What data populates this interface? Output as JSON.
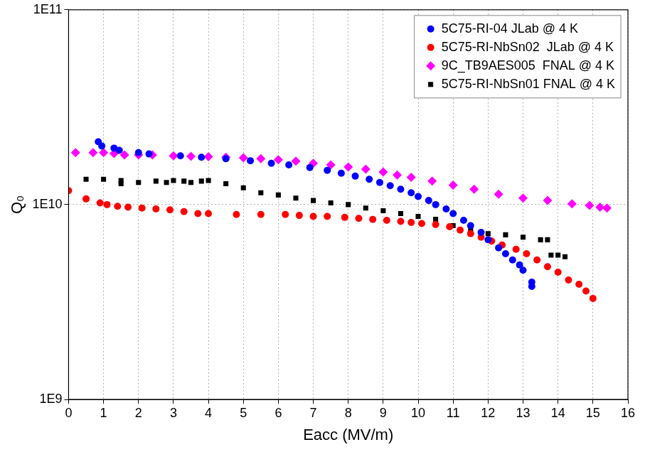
{
  "chart_data": {
    "type": "scatter",
    "x_label": "Eacc (MV/m)",
    "y_label": "Q₀",
    "log": "y",
    "grid": true,
    "legend": "upper right",
    "xlim": [
      0,
      16
    ],
    "xticks": [
      0,
      1,
      2,
      3,
      4,
      5,
      6,
      7,
      8,
      9,
      10,
      11,
      12,
      13,
      14,
      15,
      16
    ],
    "ylim": [
      1000000000,
      100000000000
    ],
    "yticks": [
      {
        "value": 1000000000,
        "label": "1E9"
      },
      {
        "value": 10000000000,
        "label": "1E10"
      },
      {
        "value": 100000000000,
        "label": "1E11"
      }
    ],
    "series": [
      {
        "name": "5C75-RI-04 JLab @ 4 K",
        "color": "#0000ff",
        "marker": "circle",
        "x": [
          0.85,
          0.95,
          1.3,
          1.45,
          2.0,
          2.3,
          3.2,
          3.8,
          4.5,
          5.2,
          5.8,
          6.3,
          6.9,
          7.4,
          7.8,
          8.2,
          8.6,
          8.9,
          9.2,
          9.5,
          9.8,
          10.0,
          10.3,
          10.5,
          10.8,
          11.0,
          11.3,
          11.5,
          11.8,
          12.0,
          12.3,
          12.5,
          12.7,
          12.9,
          13.0,
          13.25,
          13.25
        ],
        "values": [
          21000000000,
          20000000000,
          19500000000,
          19000000000,
          18500000000,
          18200000000,
          17800000000,
          17500000000,
          17200000000,
          16800000000,
          16300000000,
          16000000000,
          15500000000,
          15000000000,
          14500000000,
          14000000000,
          13500000000,
          13000000000,
          12500000000,
          12000000000,
          11500000000,
          11000000000,
          10500000000,
          10000000000,
          9500000000,
          9000000000,
          8300000000,
          7800000000,
          7200000000,
          6600000000,
          6000000000,
          5600000000,
          5200000000,
          4900000000,
          4600000000,
          4000000000,
          3800000000
        ]
      },
      {
        "name": "5C75-RI-NbSn02  JLab @ 4 K",
        "color": "#ff0000",
        "marker": "circle",
        "x": [
          0.0,
          0.5,
          0.9,
          1.1,
          1.4,
          1.7,
          2.1,
          2.5,
          2.9,
          3.3,
          3.7,
          4.0,
          4.8,
          5.5,
          6.2,
          6.6,
          7.0,
          7.4,
          7.9,
          8.3,
          8.7,
          9.1,
          9.5,
          9.8,
          10.1,
          10.5,
          10.9,
          11.2,
          11.5,
          11.8,
          12.1,
          12.4,
          12.8,
          13.1,
          13.4,
          13.7,
          14.0,
          14.3,
          14.6,
          14.8,
          15.0
        ],
        "values": [
          11800000000,
          10700000000,
          10200000000,
          10000000000,
          9800000000,
          9700000000,
          9600000000,
          9500000000,
          9400000000,
          9200000000,
          9000000000,
          9000000000,
          8900000000,
          8900000000,
          8900000000,
          8800000000,
          8700000000,
          8700000000,
          8600000000,
          8500000000,
          8400000000,
          8300000000,
          8200000000,
          8100000000,
          8000000000,
          7900000000,
          7700000000,
          7400000000,
          7100000000,
          6800000000,
          6500000000,
          6200000000,
          5900000000,
          5600000000,
          5200000000,
          4800000000,
          4500000000,
          4100000000,
          3900000000,
          3600000000,
          3300000000
        ]
      },
      {
        "name": "9C_TB9AES005  FNAL @ 4 K",
        "color": "#ff00ff",
        "marker": "diamond",
        "x": [
          0.2,
          0.7,
          1.0,
          1.3,
          1.6,
          2.0,
          2.4,
          3.0,
          3.5,
          4.0,
          4.5,
          5.0,
          5.5,
          6.0,
          6.5,
          7.0,
          7.5,
          8.0,
          8.5,
          9.0,
          9.4,
          9.8,
          10.4,
          11.0,
          11.6,
          12.3,
          13.0,
          13.7,
          14.4,
          14.9,
          15.2,
          15.4
        ],
        "values": [
          18500000000,
          18500000000,
          18500000000,
          18300000000,
          18000000000,
          18000000000,
          18000000000,
          17800000000,
          17700000000,
          17600000000,
          17500000000,
          17400000000,
          17200000000,
          17000000000,
          16700000000,
          16300000000,
          16000000000,
          15600000000,
          15200000000,
          14700000000,
          14200000000,
          13800000000,
          13200000000,
          12600000000,
          12000000000,
          11300000000,
          10800000000,
          10500000000,
          10100000000,
          9900000000,
          9700000000,
          9600000000
        ]
      },
      {
        "name": "5C75-RI-NbSn01 FNAL @ 4 K",
        "color": "#000000",
        "marker": "square",
        "x": [
          0.5,
          1.0,
          1.5,
          1.5,
          2.0,
          2.5,
          2.8,
          3.0,
          3.3,
          3.5,
          3.8,
          4.0,
          4.5,
          5.0,
          5.5,
          6.0,
          6.5,
          7.0,
          7.5,
          8.0,
          8.5,
          9.0,
          9.5,
          10.0,
          10.5,
          11.0,
          11.5,
          12.0,
          12.5,
          13.0,
          13.5,
          13.7,
          13.8,
          14.0,
          14.2
        ],
        "values": [
          13500000000,
          13500000000,
          13300000000,
          12800000000,
          13000000000,
          13200000000,
          13000000000,
          13300000000,
          13200000000,
          13000000000,
          13200000000,
          13300000000,
          12800000000,
          12200000000,
          11500000000,
          11200000000,
          10800000000,
          10500000000,
          10200000000,
          10000000000,
          9600000000,
          9300000000,
          9000000000,
          8700000000,
          8400000000,
          7800000000,
          7400000000,
          7100000000,
          7000000000,
          6800000000,
          6600000000,
          6600000000,
          5500000000,
          5500000000,
          5400000000
        ]
      }
    ]
  }
}
